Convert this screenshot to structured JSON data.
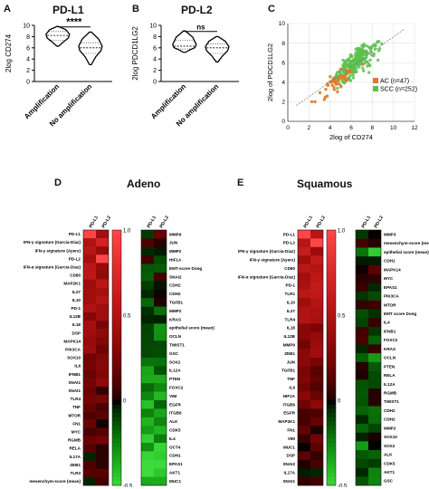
{
  "panel_a": {
    "letter": "A",
    "title": "PD-L1",
    "ylabel": "2log CD274",
    "categories": [
      "Amplification",
      "No amplification"
    ],
    "significance": "****",
    "chart_data": {
      "type": "violin",
      "title": "PD-L1",
      "ylabel": "2log CD274",
      "categories": [
        "Amplification",
        "No amplification"
      ],
      "ylim": [
        0,
        10
      ],
      "yticks": [
        0,
        2,
        4,
        6,
        8,
        10
      ],
      "median": [
        8.2,
        6.0
      ],
      "q1": [
        7.3,
        5.0
      ],
      "q3": [
        8.9,
        6.9
      ],
      "min": [
        6.3,
        3.0
      ],
      "max": [
        9.8,
        8.8
      ]
    }
  },
  "panel_b": {
    "letter": "B",
    "title": "PD-L2",
    "ylabel": "2log PDCD1LG2",
    "categories": [
      "Amplification",
      "No amplification"
    ],
    "significance": "ns",
    "chart_data": {
      "type": "violin",
      "title": "PD-L2",
      "ylabel": "2log PDCD1LG2",
      "categories": [
        "Amplification",
        "No amplification"
      ],
      "ylim": [
        0,
        10
      ],
      "yticks": [
        0,
        2,
        4,
        6,
        8,
        10
      ],
      "median": [
        6.3,
        6.0
      ],
      "q1": [
        5.8,
        5.0
      ],
      "q3": [
        7.3,
        6.7
      ],
      "min": [
        5.2,
        3.5
      ],
      "max": [
        9.0,
        8.0
      ]
    }
  },
  "panel_c": {
    "letter": "C",
    "xlabel": "2log of CD274",
    "ylabel": "2log of PDCD1LG2",
    "legend": [
      {
        "label": "AC (n=47)",
        "color": "#e07a2a"
      },
      {
        "label": "SCC (n=252)",
        "color": "#5cbf4f"
      }
    ],
    "chart_data": {
      "type": "scatter",
      "xlabel": "2log of CD274",
      "ylabel": "2log of PDCD1LG2",
      "xlim": [
        0,
        12
      ],
      "ylim": [
        0,
        10
      ],
      "xticks": [
        0,
        2,
        4,
        6,
        8,
        10,
        12
      ],
      "yticks": [
        0,
        2,
        4,
        6,
        8,
        10
      ],
      "legend_position": "bottom-right",
      "series": [
        {
          "name": "AC (n=47)",
          "color": "#e07a2a"
        },
        {
          "name": "SCC (n=252)",
          "color": "#5cbf4f"
        }
      ]
    }
  },
  "panel_d": {
    "letter": "D",
    "title": "Adeno",
    "columns": [
      "PD-L1",
      "PD-L2"
    ],
    "left_rows": [
      "PD-L1",
      "IFN-γ signature (Garcia-Diaz)",
      "IFN-γ signature (Ayers)",
      "PD-L2",
      "IFN-α signature (Garcia-Diaz)",
      "CD80",
      "MAP2K1",
      "IL27",
      "IL10",
      "PD-1",
      "IL12B",
      "IL18",
      "DSP",
      "MAPK14",
      "PIK3CA",
      "SOX10",
      "IL6",
      "IFNB1",
      "SNAI1",
      "SNAI1",
      "TLR4",
      "TNF",
      "MTOR",
      "FN1",
      "MYC",
      "RGMB",
      "RELA",
      "IL17A",
      "ZEB1",
      "TLR3",
      "mesenchym-score (mean)"
    ],
    "right_rows": [
      "MMP9",
      "JUN",
      "MMP2",
      "HIF1A",
      "EMT-score Dong",
      "SNAI2",
      "CDH2",
      "CDH2",
      "TGFB1",
      "MMP2",
      "KRAS",
      "epithelial score (mean)",
      "OCLN",
      "TWIST1",
      "GSC",
      "SOX2",
      "IL12A",
      "PTEN",
      "FOXC2",
      "VIM",
      "EGFR",
      "ITGB6",
      "ALK",
      "CDK5",
      "IL4",
      "OCT4",
      "CDH1",
      "EPAS1",
      "AKT1",
      "MUC1"
    ],
    "colorbar_ticks": [
      "1.0",
      "0.5",
      "0",
      "-0.5"
    ]
  },
  "panel_e": {
    "letter": "E",
    "title": "Squamous",
    "columns": [
      "PD-L1",
      "PD-L2"
    ],
    "left_rows": [
      "PD-L1",
      "PD-L2",
      "IFN-γ signature (Garcia-Diaz)",
      "IFN-γ signature (Ayers)",
      "CD80",
      "IFN-α signature (Garcia-Diaz)",
      "PD-1",
      "TLR1",
      "IL10",
      "IL27",
      "TLR4",
      "IL18",
      "IL12B",
      "MMP9",
      "ZEB1",
      "JUN",
      "TGFB1",
      "TNF",
      "IL6",
      "HIF1A",
      "ITGB6",
      "EGFR",
      "MAP2K1",
      "FN1",
      "VIM",
      "MUC1",
      "DSP",
      "SNAI2",
      "IL17A",
      "SNAI1"
    ],
    "right_rows": [
      "MMP3",
      "mesenchym-score (mean)",
      "epithelial score (mean)",
      "CDH1",
      "MAPK14",
      "MYC",
      "EPAS1",
      "PIK3CA",
      "MTOR",
      "EMT score Dong",
      "IL4",
      "IFNB1",
      "FOXC2",
      "KRAS",
      "OCLN",
      "PTEN",
      "RELA",
      "IL12A",
      "RGMB",
      "TWIST1",
      "CDH2",
      "CDH2",
      "MMP2",
      "SOX10",
      "SOX2",
      "ALK",
      "CDK5",
      "AKT1",
      "GSC"
    ],
    "colorbar_ticks": [
      "1.0",
      "0.5",
      "0",
      "-0.5"
    ]
  }
}
